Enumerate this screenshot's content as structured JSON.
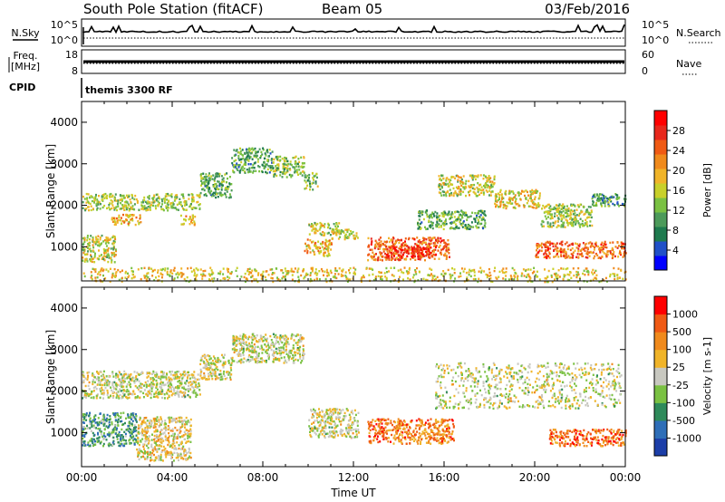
{
  "header": {
    "station": "South Pole Station (fitACF)",
    "beam": "Beam 05",
    "date": "03/Feb/2016"
  },
  "status_panels": {
    "nsky_label": "N.Sky",
    "nsearch_label": "N.Search",
    "freq_label_line1": "Freq.",
    "freq_label_line2": "[MHz]",
    "nave_label": "Nave",
    "cpid_label": "CPID",
    "cpid_value": "themis 3300 RF",
    "noise_ticks": [
      "10^5",
      "10^0"
    ],
    "freq_ticks": [
      "18",
      "8"
    ],
    "nave_ticks": [
      "60",
      "0"
    ]
  },
  "chart_data": [
    {
      "type": "heatmap",
      "name": "power",
      "xlabel": "",
      "ylabel": "Slant Range [km]",
      "xlim": [
        0,
        24
      ],
      "ylim": [
        180,
        4500
      ],
      "yticks": [
        1000,
        2000,
        3000,
        4000
      ],
      "colorbar": {
        "label": "Power [dB]",
        "ticks": [
          "28",
          "24",
          "20",
          "16",
          "12",
          "8",
          "4"
        ],
        "colors": [
          "#0000ff",
          "#2050c8",
          "#1e7a4e",
          "#4c9a5a",
          "#7ac142",
          "#c8d02a",
          "#f0b429",
          "#f08a1c",
          "#f05a14",
          "#e8281c",
          "#ff0000"
        ]
      },
      "regions": [
        {
          "t0": 0.0,
          "t1": 5.2,
          "r0": 1900,
          "r1": 2300,
          "level": 0.45
        },
        {
          "t0": 1.3,
          "t1": 2.6,
          "r0": 1550,
          "r1": 1800,
          "level": 0.62
        },
        {
          "t0": 4.3,
          "t1": 5.0,
          "r0": 1550,
          "r1": 1800,
          "level": 0.62
        },
        {
          "t0": 0.0,
          "t1": 1.5,
          "r0": 650,
          "r1": 1300,
          "level": 0.5
        },
        {
          "t0": 5.2,
          "t1": 6.6,
          "r0": 2200,
          "r1": 2800,
          "level": 0.35
        },
        {
          "t0": 6.6,
          "t1": 8.4,
          "r0": 2800,
          "r1": 3400,
          "level": 0.32
        },
        {
          "t0": 8.4,
          "t1": 9.8,
          "r0": 2700,
          "r1": 3200,
          "level": 0.4
        },
        {
          "t0": 9.8,
          "t1": 10.4,
          "r0": 2400,
          "r1": 2800,
          "level": 0.4
        },
        {
          "t0": 9.8,
          "t1": 11.0,
          "r0": 800,
          "r1": 1200,
          "level": 0.62
        },
        {
          "t0": 10.0,
          "t1": 11.4,
          "r0": 1300,
          "r1": 1600,
          "level": 0.5
        },
        {
          "t0": 11.0,
          "t1": 12.2,
          "r0": 1200,
          "r1": 1450,
          "level": 0.48
        },
        {
          "t0": 12.6,
          "t1": 16.2,
          "r0": 700,
          "r1": 1250,
          "level": 0.75
        },
        {
          "t0": 13.4,
          "t1": 15.5,
          "r0": 750,
          "r1": 1050,
          "level": 0.9
        },
        {
          "t0": 14.8,
          "t1": 17.8,
          "r0": 1450,
          "r1": 1900,
          "level": 0.35
        },
        {
          "t0": 15.7,
          "t1": 18.2,
          "r0": 2250,
          "r1": 2750,
          "level": 0.5
        },
        {
          "t0": 18.2,
          "t1": 20.2,
          "r0": 1950,
          "r1": 2400,
          "level": 0.55
        },
        {
          "t0": 20.2,
          "t1": 22.5,
          "r0": 1500,
          "r1": 2050,
          "level": 0.45
        },
        {
          "t0": 22.5,
          "t1": 24.0,
          "r0": 2000,
          "r1": 2300,
          "level": 0.3
        },
        {
          "t0": 20.0,
          "t1": 24.0,
          "r0": 750,
          "r1": 1150,
          "level": 0.75
        },
        {
          "t0": 0.0,
          "t1": 24.0,
          "r0": 180,
          "r1": 520,
          "level": 0.55
        }
      ]
    },
    {
      "type": "heatmap",
      "name": "velocity",
      "xlabel": "Time UT",
      "ylabel": "Slant Range [km]",
      "xlim": [
        0,
        24
      ],
      "xticks": [
        "00:00",
        "04:00",
        "08:00",
        "12:00",
        "16:00",
        "20:00",
        "00:00"
      ],
      "ylim": [
        180,
        4500
      ],
      "yticks": [
        1000,
        2000,
        3000,
        4000
      ],
      "colorbar": {
        "label": "Velocity [m s-1]",
        "ticks": [
          "1000",
          "500",
          "100",
          "25",
          "-25",
          "-100",
          "-500",
          "-1000"
        ],
        "colors": [
          "#1c3ea8",
          "#2e6eb8",
          "#2e8a5a",
          "#7ac142",
          "#c8c8c0",
          "#f0b429",
          "#f08a1c",
          "#f05a14",
          "#ff0000"
        ]
      },
      "regions": [
        {
          "t0": 0.0,
          "t1": 5.2,
          "r0": 1850,
          "r1": 2500,
          "level": 0.5
        },
        {
          "t0": 0.0,
          "t1": 2.4,
          "r0": 700,
          "r1": 1500,
          "level": 0.3
        },
        {
          "t0": 2.4,
          "t1": 4.8,
          "r0": 350,
          "r1": 1400,
          "level": 0.55
        },
        {
          "t0": 5.2,
          "t1": 6.6,
          "r0": 2300,
          "r1": 2900,
          "level": 0.5
        },
        {
          "t0": 6.6,
          "t1": 9.8,
          "r0": 2700,
          "r1": 3400,
          "level": 0.5
        },
        {
          "t0": 10.0,
          "t1": 12.2,
          "r0": 900,
          "r1": 1600,
          "level": 0.5
        },
        {
          "t0": 12.6,
          "t1": 16.4,
          "r0": 750,
          "r1": 1350,
          "level": 0.75
        },
        {
          "t0": 15.6,
          "t1": 23.8,
          "r0": 1600,
          "r1": 2700,
          "level": 0.5
        },
        {
          "t0": 20.6,
          "t1": 24.0,
          "r0": 700,
          "r1": 1100,
          "level": 0.78
        }
      ]
    }
  ]
}
